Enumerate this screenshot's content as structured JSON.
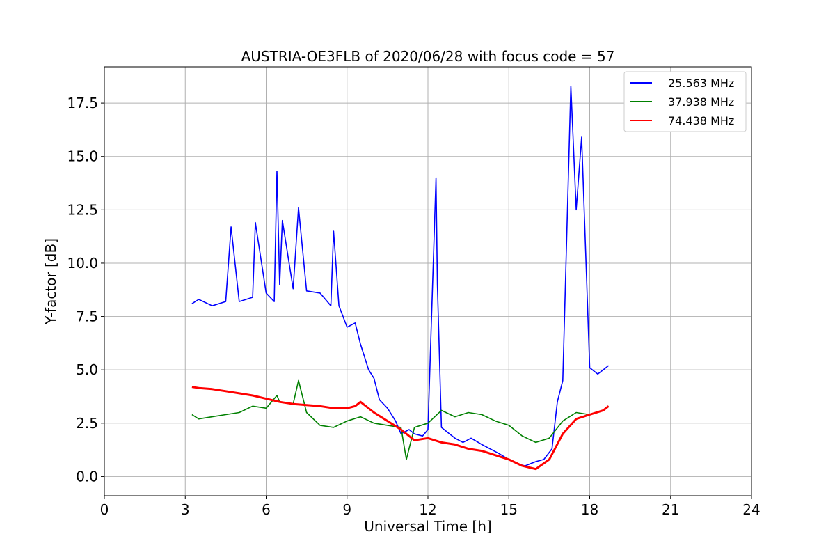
{
  "chart_data": {
    "type": "line",
    "title": "AUSTRIA-OE3FLB of 2020/06/28 with focus code = 57",
    "xlabel": "Universal Time [h]",
    "ylabel": "Y-factor [dB]",
    "xlim": [
      0,
      24
    ],
    "ylim": [
      -0.9,
      19.2
    ],
    "xticks": [
      0,
      3,
      6,
      9,
      12,
      15,
      18,
      21,
      24
    ],
    "xtick_labels": [
      "0",
      "3",
      "6",
      "9",
      "12",
      "15",
      "18",
      "21",
      "24"
    ],
    "yticks": [
      0,
      2.5,
      5,
      7.5,
      10,
      12.5,
      15,
      17.5
    ],
    "ytick_labels": [
      "0.0",
      "2.5",
      "5.0",
      "7.5",
      "10.0",
      "12.5",
      "15.0",
      "17.5"
    ],
    "grid": true,
    "legend_position": "top-right",
    "series": [
      {
        "name": "25.563 MHz",
        "color": "#0000ff",
        "x": [
          3.25,
          3.5,
          4.0,
          4.5,
          4.7,
          5.0,
          5.5,
          5.6,
          6.0,
          6.3,
          6.4,
          6.5,
          6.6,
          7.0,
          7.2,
          7.5,
          8.0,
          8.4,
          8.5,
          8.7,
          9.0,
          9.3,
          9.5,
          9.8,
          10.0,
          10.2,
          10.5,
          10.8,
          11.0,
          11.3,
          11.5,
          11.8,
          12.0,
          12.3,
          12.35,
          12.5,
          12.8,
          13.0,
          13.3,
          13.6,
          14.0,
          14.3,
          14.6,
          15.0,
          15.3,
          15.6,
          16.0,
          16.3,
          16.6,
          16.8,
          17.0,
          17.3,
          17.5,
          17.7,
          18.0,
          18.3,
          18.7
        ],
        "y": [
          8.1,
          8.3,
          8.0,
          8.2,
          11.7,
          8.2,
          8.4,
          11.9,
          8.6,
          8.2,
          14.3,
          9.0,
          12.0,
          8.8,
          12.6,
          8.7,
          8.6,
          8.0,
          11.5,
          8.0,
          7.0,
          7.2,
          6.2,
          5.0,
          4.6,
          3.6,
          3.2,
          2.6,
          2.0,
          2.2,
          2.0,
          1.9,
          2.2,
          14.0,
          9.0,
          2.3,
          2.0,
          1.8,
          1.6,
          1.8,
          1.5,
          1.3,
          1.1,
          0.8,
          0.6,
          0.5,
          0.7,
          0.8,
          1.3,
          3.5,
          4.5,
          18.3,
          12.5,
          15.9,
          5.1,
          4.8,
          5.2
        ]
      },
      {
        "name": "37.938 MHz",
        "color": "#008000",
        "x": [
          3.25,
          3.5,
          4.0,
          4.5,
          5.0,
          5.5,
          6.0,
          6.4,
          6.5,
          7.0,
          7.2,
          7.5,
          8.0,
          8.5,
          9.0,
          9.5,
          10.0,
          10.5,
          11.0,
          11.2,
          11.5,
          12.0,
          12.5,
          13.0,
          13.5,
          14.0,
          14.5,
          15.0,
          15.5,
          16.0,
          16.5,
          17.0,
          17.5,
          18.0,
          18.5,
          18.7
        ],
        "y": [
          2.9,
          2.7,
          2.8,
          2.9,
          3.0,
          3.3,
          3.2,
          3.8,
          3.5,
          3.4,
          4.5,
          3.0,
          2.4,
          2.3,
          2.6,
          2.8,
          2.5,
          2.4,
          2.3,
          0.8,
          2.3,
          2.5,
          3.1,
          2.8,
          3.0,
          2.9,
          2.6,
          2.4,
          1.9,
          1.6,
          1.8,
          2.6,
          3.0,
          2.9,
          3.1,
          3.3
        ]
      },
      {
        "name": "74.438 MHz",
        "color": "#ff0000",
        "x": [
          3.25,
          3.5,
          4.0,
          4.5,
          5.0,
          5.5,
          6.0,
          6.5,
          7.0,
          7.5,
          8.0,
          8.5,
          9.0,
          9.3,
          9.5,
          10.0,
          10.5,
          11.0,
          11.5,
          12.0,
          12.5,
          13.0,
          13.5,
          14.0,
          14.5,
          15.0,
          15.5,
          16.0,
          16.5,
          17.0,
          17.5,
          18.0,
          18.5,
          18.7
        ],
        "y": [
          4.2,
          4.15,
          4.1,
          4.0,
          3.9,
          3.8,
          3.65,
          3.5,
          3.4,
          3.35,
          3.3,
          3.2,
          3.2,
          3.3,
          3.5,
          3.0,
          2.6,
          2.2,
          1.7,
          1.8,
          1.6,
          1.5,
          1.3,
          1.2,
          1.0,
          0.8,
          0.5,
          0.35,
          0.8,
          2.0,
          2.7,
          2.9,
          3.1,
          3.3
        ]
      }
    ]
  }
}
